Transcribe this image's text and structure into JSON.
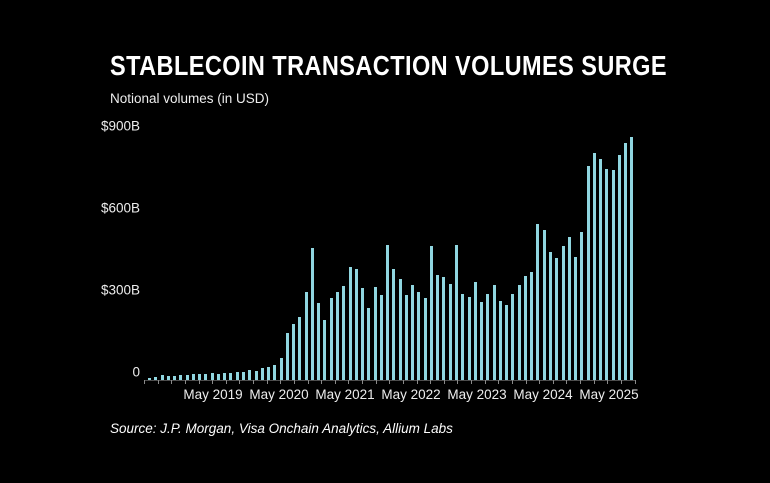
{
  "title": "STABLECOIN TRANSACTION VOLUMES SURGE",
  "subtitle": "Notional volumes (in USD)",
  "source": "Source: J.P. Morgan, Visa Onchain Analytics, Allium Labs",
  "colors": {
    "background": "#000000",
    "bar": "#90d6e0",
    "text": "#ffffff",
    "axis_line": "#4d4d4d",
    "tick": "#8a8a8a"
  },
  "chart_data": {
    "type": "bar",
    "title": "STABLECOIN TRANSACTION VOLUMES SURGE",
    "subtitle": "Notional volumes (in USD)",
    "unit": "USD billions",
    "x_range": "monthly, 2019 through mid-2025",
    "ylim": [
      0,
      915
    ],
    "grid": "off",
    "legend": "none",
    "y_ticks": [
      {
        "label": "$900B",
        "value": 900
      },
      {
        "label": "$600B",
        "value": 600
      },
      {
        "label": "$300B",
        "value": 300
      },
      {
        "label": "0",
        "value": 0
      }
    ],
    "x_labels": [
      {
        "label": "May 2019",
        "pos_pct": 13.37
      },
      {
        "label": "May 2020",
        "pos_pct": 26.95
      },
      {
        "label": "May 2021",
        "pos_pct": 40.53
      },
      {
        "label": "May 2022",
        "pos_pct": 54.12
      },
      {
        "label": "May 2023",
        "pos_pct": 67.7
      },
      {
        "label": "May 2024",
        "pos_pct": 81.28
      },
      {
        "label": "May 2025",
        "pos_pct": 94.86
      }
    ],
    "values": [
      6,
      10,
      19,
      16,
      14,
      18,
      17,
      22,
      21,
      21,
      25,
      22,
      27,
      25,
      30,
      28,
      37,
      34,
      43,
      49,
      55,
      80,
      171,
      204,
      232,
      323,
      482,
      283,
      220,
      299,
      321,
      345,
      415,
      405,
      336,
      265,
      342,
      311,
      494,
      405,
      370,
      310,
      348,
      323,
      299,
      492,
      384,
      378,
      351,
      494,
      315,
      305,
      360,
      286,
      315,
      348,
      290,
      274,
      315,
      348,
      381,
      394,
      570,
      549,
      470,
      448,
      492,
      524,
      451,
      543,
      783,
      830,
      808,
      771,
      769,
      823,
      868,
      890
    ],
    "axis_tick_count": 37
  }
}
